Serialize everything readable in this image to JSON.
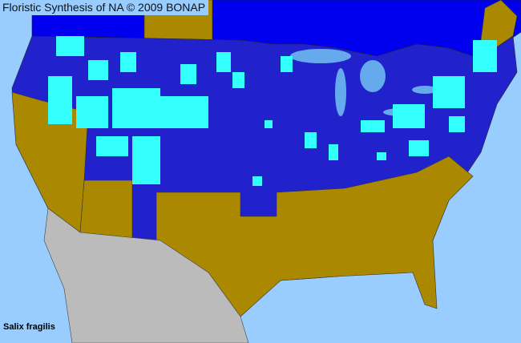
{
  "header": {
    "title": "Floristic Synthesis of NA © 2009 BONAP"
  },
  "map": {
    "species": "Salix fragilis",
    "colors": {
      "water": "#99ccff",
      "canada": "#0000ee",
      "us_present": "#2222cc",
      "county_common": "#33ffff",
      "absent_native": "#aa8800",
      "mexico": "#bbbbbb",
      "lakes": "#66aaee",
      "borders": "#333333"
    }
  }
}
